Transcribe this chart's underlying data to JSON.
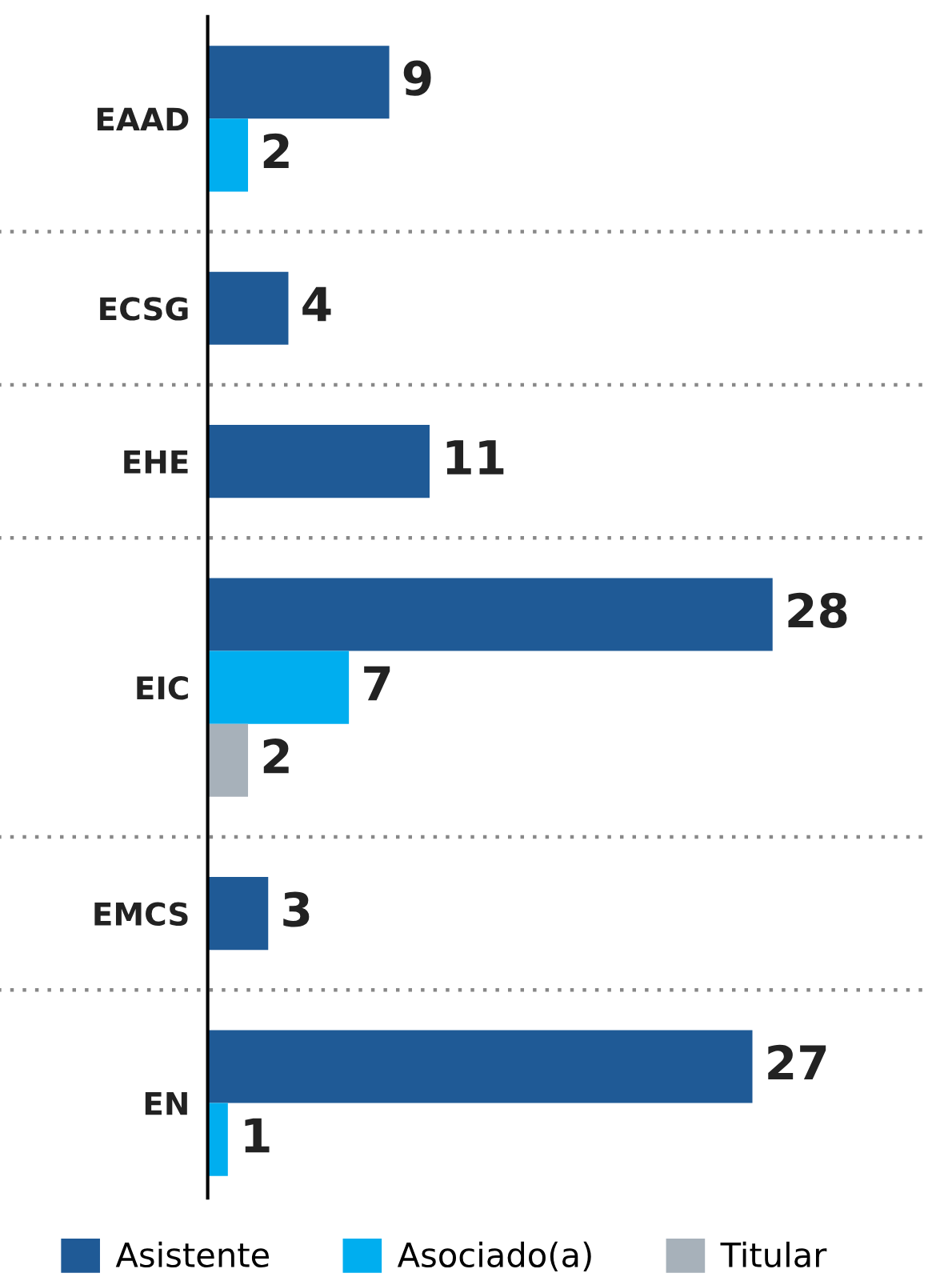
{
  "chart_data": {
    "type": "bar",
    "orientation": "horizontal",
    "categories": [
      "EAAD",
      "ECSG",
      "EHE",
      "EIC",
      "EMCS",
      "EN"
    ],
    "series": [
      {
        "name": "Asistente",
        "color": "#1f5a96",
        "values": [
          9,
          4,
          11,
          28,
          3,
          27
        ]
      },
      {
        "name": "Asociado(a)",
        "color": "#00aeef",
        "values": [
          2,
          null,
          null,
          7,
          null,
          1
        ]
      },
      {
        "name": "Titular",
        "color": "#a7b1ba",
        "values": [
          null,
          null,
          null,
          2,
          null,
          null
        ]
      }
    ],
    "data_labels": true,
    "legend": "bottom",
    "grid": false
  }
}
